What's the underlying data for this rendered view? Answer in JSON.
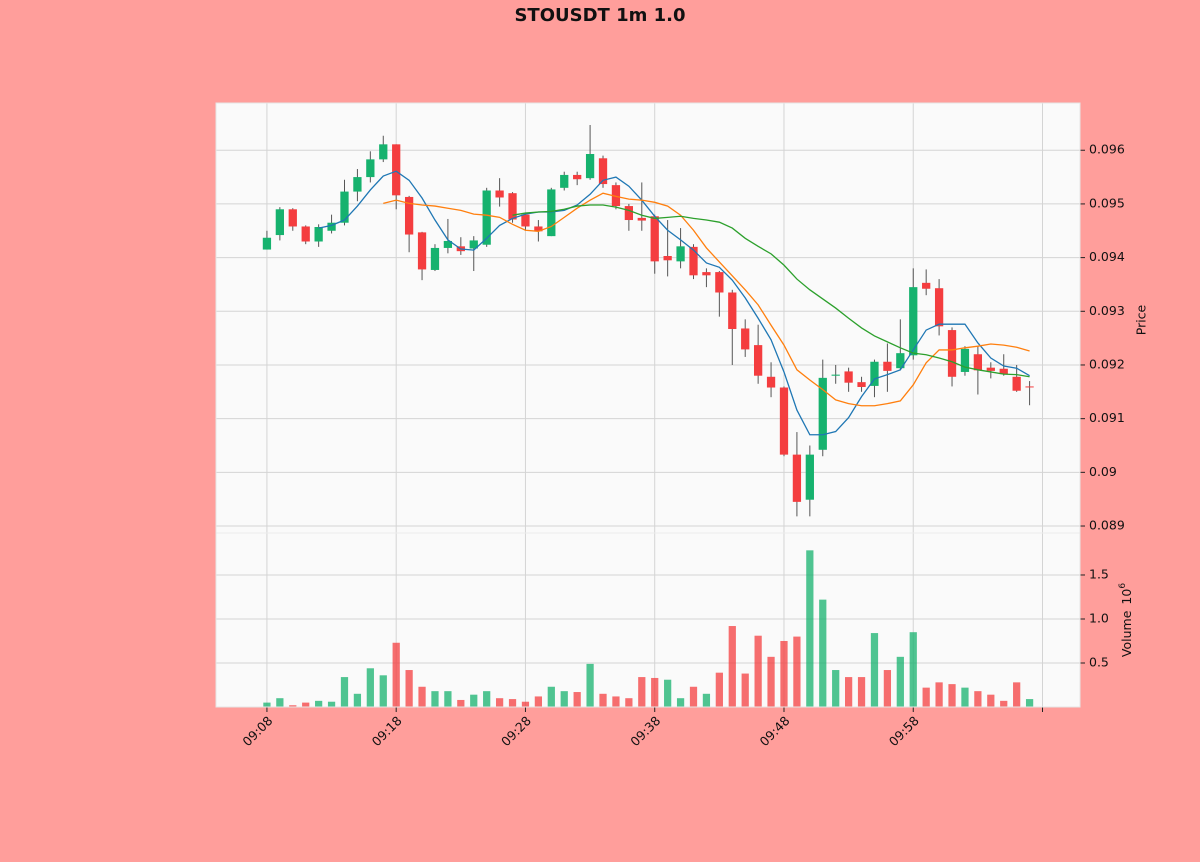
{
  "chart_data": {
    "type": "candlestick",
    "title": "STOUSDT 1m 1.0",
    "x": [
      0,
      1,
      2,
      3,
      4,
      5,
      6,
      7,
      8,
      9,
      10,
      11,
      12,
      13,
      14,
      15,
      16,
      17,
      18,
      19,
      20,
      21,
      22,
      23,
      24,
      25,
      26,
      27,
      28,
      29,
      30,
      31,
      32,
      33,
      34,
      35,
      36,
      37,
      38,
      39,
      40,
      41,
      42,
      43,
      44,
      45,
      46,
      47,
      48,
      49,
      50,
      51,
      52,
      53,
      54,
      55,
      56,
      57,
      58,
      59
    ],
    "xlim": [
      -3.94,
      62.9
    ],
    "xticks": [
      {
        "value": 0,
        "label": "09:08"
      },
      {
        "value": 10,
        "label": "09:18"
      },
      {
        "value": 20,
        "label": "09:28"
      },
      {
        "value": 30,
        "label": "09:38"
      },
      {
        "value": 40,
        "label": "09:48"
      },
      {
        "value": 50,
        "label": "09:58"
      },
      {
        "value": 60,
        "label": null
      }
    ],
    "open": [
      0.09415,
      0.09442,
      0.0949,
      0.09458,
      0.0943,
      0.0945,
      0.09465,
      0.09523,
      0.0955,
      0.09583,
      0.09611,
      0.09513,
      0.09447,
      0.09377,
      0.09418,
      0.09421,
      0.09417,
      0.09424,
      0.09525,
      0.0952,
      0.0948,
      0.09458,
      0.0944,
      0.0953,
      0.09554,
      0.09548,
      0.09585,
      0.09535,
      0.09496,
      0.09474,
      0.09477,
      0.09403,
      0.09393,
      0.0942,
      0.09373,
      0.09373,
      0.09335,
      0.09268,
      0.09237,
      0.09178,
      0.09158,
      0.09033,
      0.08949,
      0.09042,
      0.0918,
      0.09188,
      0.09168,
      0.09161,
      0.09206,
      0.09194,
      0.09218,
      0.09353,
      0.09343,
      0.09265,
      0.09187,
      0.0922,
      0.09195,
      0.09193,
      0.09178,
      0.0916
    ],
    "high": [
      0.0945,
      0.09494,
      0.09492,
      0.0946,
      0.09462,
      0.0948,
      0.09545,
      0.09565,
      0.09598,
      0.09627,
      0.09611,
      0.09515,
      0.09448,
      0.09425,
      0.09472,
      0.09438,
      0.0944,
      0.0953,
      0.09548,
      0.09522,
      0.09482,
      0.0947,
      0.0953,
      0.0956,
      0.0956,
      0.09647,
      0.0959,
      0.0954,
      0.095,
      0.0954,
      0.0948,
      0.0947,
      0.09455,
      0.09425,
      0.0938,
      0.09375,
      0.0934,
      0.09285,
      0.09275,
      0.09205,
      0.0916,
      0.09075,
      0.0905,
      0.0921,
      0.092,
      0.09195,
      0.09178,
      0.0921,
      0.0924,
      0.09285,
      0.0938,
      0.09378,
      0.0936,
      0.0927,
      0.09235,
      0.09235,
      0.09205,
      0.0922,
      0.092,
      0.0917
    ],
    "low": [
      0.09415,
      0.09432,
      0.0945,
      0.09425,
      0.0942,
      0.09445,
      0.0946,
      0.09505,
      0.0954,
      0.09578,
      0.0949,
      0.0941,
      0.09358,
      0.09375,
      0.09408,
      0.09405,
      0.09375,
      0.0942,
      0.09495,
      0.09465,
      0.0945,
      0.0943,
      0.0944,
      0.09525,
      0.09535,
      0.09545,
      0.0953,
      0.0949,
      0.0945,
      0.0945,
      0.0937,
      0.09365,
      0.0938,
      0.0936,
      0.09345,
      0.0929,
      0.092,
      0.09215,
      0.09165,
      0.0914,
      0.0903,
      0.08918,
      0.08918,
      0.0903,
      0.09165,
      0.0915,
      0.0915,
      0.0914,
      0.0915,
      0.0919,
      0.0921,
      0.0933,
      0.09255,
      0.0916,
      0.0918,
      0.09145,
      0.09175,
      0.0918,
      0.0915,
      0.09125
    ],
    "close": [
      0.09437,
      0.0949,
      0.09458,
      0.0943,
      0.09457,
      0.09465,
      0.09523,
      0.0955,
      0.09583,
      0.09611,
      0.09516,
      0.09443,
      0.09378,
      0.09418,
      0.09431,
      0.09412,
      0.09432,
      0.09525,
      0.09512,
      0.09471,
      0.09458,
      0.09449,
      0.09527,
      0.09554,
      0.09546,
      0.09593,
      0.09537,
      0.09496,
      0.0947,
      0.09469,
      0.09393,
      0.09395,
      0.09421,
      0.09367,
      0.09367,
      0.09335,
      0.09267,
      0.09229,
      0.0918,
      0.09158,
      0.09033,
      0.08945,
      0.09033,
      0.09176,
      0.09182,
      0.09167,
      0.09159,
      0.09206,
      0.09189,
      0.09222,
      0.09345,
      0.09342,
      0.09272,
      0.09178,
      0.0923,
      0.0919,
      0.09189,
      0.09183,
      0.09152,
      0.09159
    ],
    "up_color": "#16b26e",
    "down_color": "#f43d3f",
    "wick_color": "#555555",
    "ylim": [
      0.08887,
      0.09688
    ],
    "yticks": [
      0.089,
      0.09,
      0.091,
      0.092,
      0.093,
      0.094,
      0.095,
      0.096
    ],
    "ylabel": "Price",
    "moving_averages": [
      {
        "color": "#1f77b4",
        "values": [
          null,
          null,
          null,
          null,
          0.09455,
          0.0946,
          0.0947,
          0.09496,
          0.09526,
          0.09552,
          0.09561,
          0.09544,
          0.09511,
          0.0947,
          0.09433,
          0.09416,
          0.09414,
          0.09436,
          0.0946,
          0.09473,
          0.09481,
          0.09485,
          0.09485,
          0.09488,
          0.09498,
          0.09518,
          0.09544,
          0.0955,
          0.09533,
          0.09507,
          0.09477,
          0.09451,
          0.09433,
          0.09414,
          0.0939,
          0.09382,
          0.09358,
          0.09325,
          0.09287,
          0.09247,
          0.09187,
          0.09116,
          0.0907,
          0.0907,
          0.09076,
          0.09102,
          0.09141,
          0.09174,
          0.09182,
          0.09191,
          0.09228,
          0.09265,
          0.09276,
          0.09276,
          0.09276,
          0.09241,
          0.09213,
          0.09198,
          0.09194,
          0.0918
        ]
      },
      {
        "color": "#ff7f0e",
        "values": [
          null,
          null,
          null,
          null,
          null,
          null,
          null,
          null,
          null,
          0.09501,
          0.09507,
          0.09501,
          0.09498,
          0.09496,
          0.09492,
          0.09488,
          0.09481,
          0.09479,
          0.09475,
          0.09462,
          0.09451,
          0.09449,
          0.09458,
          0.09475,
          0.09492,
          0.09507,
          0.0952,
          0.09514,
          0.09509,
          0.09507,
          0.09503,
          0.09496,
          0.09479,
          0.09451,
          0.09418,
          0.09392,
          0.09366,
          0.0934,
          0.09312,
          0.09274,
          0.09237,
          0.09191,
          0.09172,
          0.09154,
          0.09135,
          0.09128,
          0.09124,
          0.09124,
          0.09128,
          0.09133,
          0.09163,
          0.09204,
          0.09228,
          0.09228,
          0.09232,
          0.09235,
          0.09239,
          0.09237,
          0.09233,
          0.09226
        ]
      },
      {
        "color": "#2ca02c",
        "values": [
          null,
          null,
          null,
          null,
          null,
          null,
          null,
          null,
          null,
          null,
          null,
          null,
          null,
          null,
          null,
          null,
          null,
          null,
          null,
          0.09479,
          0.09483,
          0.09485,
          0.09486,
          0.0949,
          0.09496,
          0.09498,
          0.09498,
          0.09494,
          0.09488,
          0.09479,
          0.09473,
          0.09475,
          0.09477,
          0.09473,
          0.0947,
          0.09466,
          0.09455,
          0.09436,
          0.09421,
          0.09407,
          0.09386,
          0.0936,
          0.0934,
          0.09323,
          0.09306,
          0.09287,
          0.09269,
          0.09254,
          0.09243,
          0.09232,
          0.09222,
          0.09219,
          0.09213,
          0.09206,
          0.09196,
          0.09191,
          0.09187,
          0.09183,
          0.09182,
          0.09178
        ]
      }
    ],
    "volume": {
      "values": [
        0.05,
        0.1,
        0.02,
        0.05,
        0.07,
        0.06,
        0.34,
        0.15,
        0.44,
        0.36,
        0.73,
        0.42,
        0.23,
        0.18,
        0.18,
        0.08,
        0.14,
        0.18,
        0.1,
        0.09,
        0.06,
        0.12,
        0.23,
        0.18,
        0.17,
        0.49,
        0.15,
        0.12,
        0.1,
        0.34,
        0.33,
        0.31,
        0.1,
        0.23,
        0.15,
        0.39,
        0.92,
        0.38,
        0.81,
        0.57,
        0.75,
        0.8,
        1.78,
        1.22,
        0.42,
        0.34,
        0.34,
        0.84,
        0.42,
        0.57,
        0.85,
        0.22,
        0.28,
        0.26,
        0.22,
        0.18,
        0.14,
        0.07,
        0.28,
        0.09
      ],
      "ylim": [
        0,
        1.977
      ],
      "yticks": [
        0.5,
        {
          "value": 1,
          "label": "1.0"
        },
        1.5
      ],
      "ylabel": "Volume",
      "offset_base": "10",
      "offset_exponent": "6"
    },
    "grid": true
  }
}
